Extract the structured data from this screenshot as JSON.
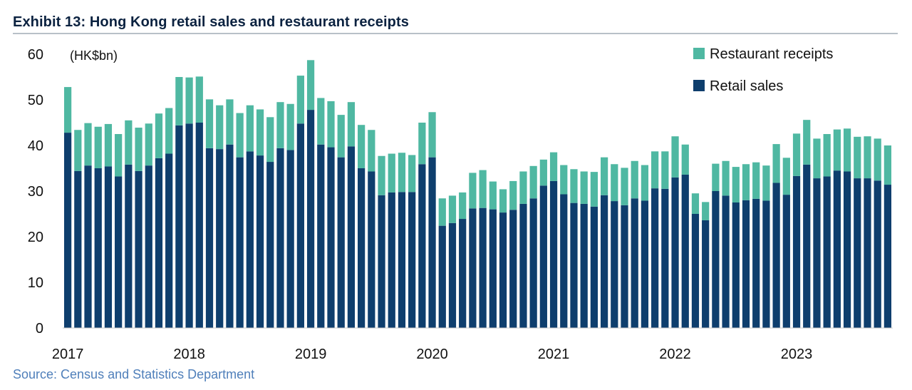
{
  "colors": {
    "retail": "#0e3e6d",
    "restaurant": "#4fb8a2",
    "title": "#0b2240",
    "source": "#4f7fba"
  },
  "title": "Exhibit 13: Hong Kong retail sales and restaurant receipts",
  "source": "Source: Census and Statistics  Department",
  "chart_data": {
    "type": "bar",
    "stacked": true,
    "title": "Exhibit 13: Hong Kong retail sales and restaurant receipts",
    "ylabel": "(HK$bn)",
    "xlabel": "",
    "ylim": [
      0,
      60
    ],
    "yticks": [
      0,
      10,
      20,
      30,
      40,
      50,
      60
    ],
    "xtick_labels": [
      "2017",
      "2018",
      "2019",
      "2020",
      "2021",
      "2022",
      "2023"
    ],
    "legend": [
      "Restaurant receipts",
      "Retail sales"
    ],
    "legend_position": "top-right",
    "period": "monthly, Jan 2017 – Sep 2023",
    "series": [
      {
        "name": "Retail sales",
        "values": [
          42.8,
          34.4,
          35.6,
          35.0,
          35.4,
          33.2,
          35.8,
          34.4,
          35.6,
          37.2,
          38.2,
          44.4,
          44.8,
          45.0,
          39.4,
          39.2,
          40.2,
          37.4,
          38.7,
          37.8,
          36.4,
          39.4,
          39.0,
          44.8,
          47.8,
          40.2,
          39.6,
          37.4,
          39.8,
          35.0,
          34.3,
          29.1,
          29.7,
          29.8,
          29.8,
          35.9,
          37.4,
          22.4,
          23.0,
          23.9,
          26.2,
          26.3,
          26.0,
          25.3,
          25.9,
          27.2,
          28.4,
          31.2,
          32.2,
          29.3,
          27.4,
          27.2,
          26.6,
          29.1,
          27.8,
          26.9,
          28.4,
          27.9,
          30.6,
          30.5,
          33.0,
          33.6,
          25.0,
          23.6,
          30.0,
          29.0,
          27.5,
          28.0,
          28.3,
          27.9,
          31.8,
          29.2,
          33.3,
          35.8,
          32.8,
          33.2,
          34.5,
          34.3,
          32.8,
          32.8,
          32.3,
          31.4
        ]
      },
      {
        "name": "Restaurant receipts",
        "values": [
          10.0,
          9.0,
          9.3,
          9.1,
          9.3,
          9.3,
          9.7,
          9.5,
          9.2,
          9.8,
          10.0,
          10.6,
          10.1,
          10.1,
          10.7,
          9.6,
          9.9,
          9.7,
          10.1,
          10.1,
          9.8,
          10.1,
          10.1,
          10.5,
          10.9,
          10.2,
          10.1,
          9.3,
          9.7,
          9.5,
          9.1,
          8.6,
          8.5,
          8.6,
          8.1,
          9.1,
          9.9,
          6.0,
          6.0,
          5.8,
          7.8,
          8.3,
          6.1,
          5.1,
          6.3,
          7.1,
          7.1,
          5.7,
          6.3,
          6.4,
          7.4,
          7.1,
          7.6,
          8.3,
          8.1,
          8.2,
          8.2,
          7.8,
          8.1,
          8.2,
          9.0,
          6.6,
          4.5,
          4.0,
          6.0,
          7.6,
          7.8,
          7.9,
          8.0,
          7.7,
          8.5,
          8.1,
          9.3,
          9.8,
          8.7,
          9.3,
          9.0,
          9.4,
          9.1,
          9.2,
          9.2,
          8.6
        ]
      }
    ]
  }
}
